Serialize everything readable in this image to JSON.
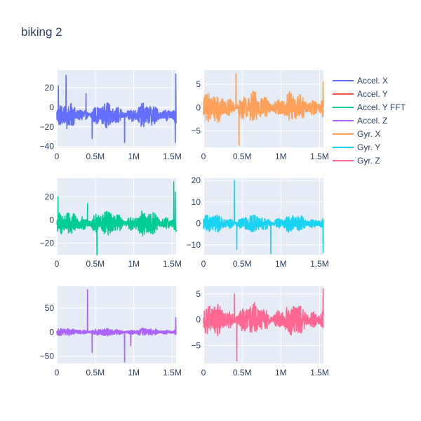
{
  "chart_data": {
    "type": "line",
    "title": "biking 2",
    "legend_position": "right",
    "series_colors": {
      "Accel. X": "#636efa",
      "Accel. Y": "#ef553b",
      "Accel. Y FFT": "#00cc96",
      "Accel. Z": "#ab63fa",
      "Gyr. X": "#ffa15a",
      "Gyr. Y": "#19d3f3",
      "Gyr. Z": "#ff6692"
    },
    "legend": [
      "Accel. X",
      "Accel. Y",
      "Accel. Y FFT",
      "Accel. Z",
      "Gyr. X",
      "Gyr. Y",
      "Gyr. Z"
    ],
    "subplots": [
      {
        "series": "Accel. X",
        "xlim": [
          0,
          1550000
        ],
        "ylim": [
          -41,
          38
        ],
        "xticks": [
          0,
          500000,
          1000000,
          1500000
        ],
        "xtick_labels": [
          "0",
          "0.5M",
          "1M",
          "1.5M"
        ],
        "yticks": [
          -40,
          -20,
          0,
          20
        ],
        "ytick_labels": [
          "−40",
          "−20",
          "0",
          "20"
        ],
        "baseline": -8,
        "amplitude": 10,
        "spikes": [
          [
            20000,
            22
          ],
          [
            120000,
            33
          ],
          [
            130000,
            -22
          ],
          [
            380000,
            14
          ],
          [
            460000,
            -32
          ],
          [
            880000,
            -36
          ],
          [
            1545000,
            34
          ],
          [
            1540000,
            -36
          ]
        ]
      },
      {
        "series": "Gyr. X",
        "xlim": [
          0,
          1550000
        ],
        "ylim": [
          -8.5,
          8
        ],
        "xticks": [
          0,
          500000,
          1000000,
          1500000
        ],
        "xtick_labels": [
          "0",
          "0.5M",
          "1M",
          "1.5M"
        ],
        "yticks": [
          -5,
          0,
          5
        ],
        "ytick_labels": [
          "−5",
          "0",
          "5"
        ],
        "baseline": 0,
        "amplitude": 2.8,
        "spikes": [
          [
            420000,
            7.2
          ],
          [
            460000,
            -8
          ],
          [
            1545000,
            5.5
          ]
        ]
      },
      {
        "series": "Accel. Y FFT",
        "xlim": [
          0,
          1550000
        ],
        "ylim": [
          -30,
          36
        ],
        "xticks": [
          0,
          500000,
          1000000,
          1500000
        ],
        "xtick_labels": [
          "0",
          "0.5M",
          "1M",
          "1.5M"
        ],
        "yticks": [
          -20,
          0,
          20
        ],
        "ytick_labels": [
          "−20",
          "0",
          "20"
        ],
        "baseline": -3,
        "amplitude": 9,
        "spikes": [
          [
            15000,
            20
          ],
          [
            400000,
            14
          ],
          [
            520000,
            -30
          ],
          [
            1520000,
            33
          ],
          [
            1540000,
            24
          ]
        ]
      },
      {
        "series": "Gyr. Y",
        "xlim": [
          0,
          1550000
        ],
        "ylim": [
          -14.5,
          21
        ],
        "xticks": [
          0,
          500000,
          1000000,
          1500000
        ],
        "xtick_labels": [
          "0",
          "0.5M",
          "1M",
          "1.5M"
        ],
        "yticks": [
          -10,
          0,
          10,
          20
        ],
        "ytick_labels": [
          "−10",
          "0",
          "10",
          "20"
        ],
        "baseline": 0,
        "amplitude": 3.5,
        "spikes": [
          [
            400000,
            20
          ],
          [
            430000,
            -12
          ],
          [
            870000,
            -14
          ],
          [
            1545000,
            -13.5
          ]
        ]
      },
      {
        "series": "Accel. Z",
        "xlim": [
          0,
          1550000
        ],
        "ylim": [
          -65,
          95
        ],
        "xticks": [
          0,
          500000,
          1000000,
          1500000
        ],
        "xtick_labels": [
          "0",
          "0.5M",
          "1M",
          "1.5M"
        ],
        "yticks": [
          -50,
          0,
          50
        ],
        "ytick_labels": [
          "−50",
          "0",
          "50"
        ],
        "baseline": 0,
        "amplitude": 7,
        "spikes": [
          [
            400000,
            88
          ],
          [
            460000,
            -42
          ],
          [
            880000,
            -62
          ],
          [
            960000,
            -28
          ],
          [
            1545000,
            30
          ]
        ]
      },
      {
        "series": "Gyr. Z",
        "xlim": [
          0,
          1550000
        ],
        "ylim": [
          -8.5,
          6.5
        ],
        "xticks": [
          0,
          500000,
          1000000,
          1500000
        ],
        "xtick_labels": [
          "0",
          "0.5M",
          "1M",
          "1.5M"
        ],
        "yticks": [
          -5,
          0,
          5
        ],
        "ytick_labels": [
          "−5",
          "0",
          "5"
        ],
        "baseline": 0,
        "amplitude": 2.6,
        "spikes": [
          [
            400000,
            5
          ],
          [
            430000,
            -8
          ],
          [
            1545000,
            6
          ]
        ]
      }
    ]
  }
}
